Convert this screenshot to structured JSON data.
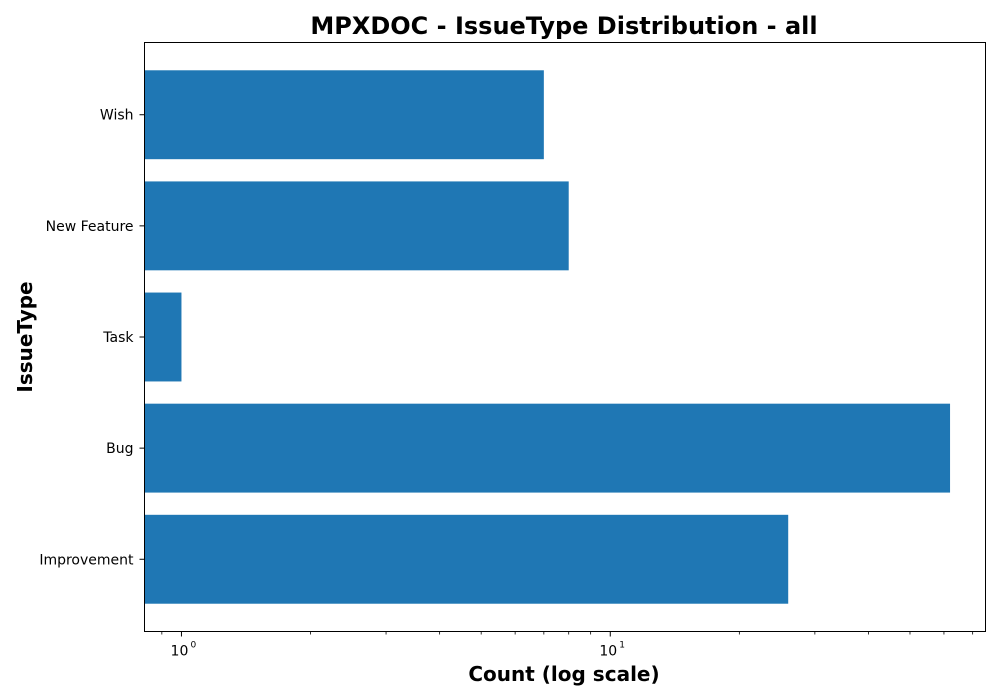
{
  "chart_data": {
    "type": "bar",
    "orientation": "horizontal",
    "title": "MPXDOC - IssueType Distribution - all",
    "xlabel": "Count (log scale)",
    "ylabel": "IssueType",
    "xscale": "log",
    "xlim": [
      0.82,
      75
    ],
    "categories": [
      "Improvement",
      "Bug",
      "Task",
      "New Feature",
      "Wish"
    ],
    "values": [
      26,
      62,
      1,
      8,
      7
    ],
    "x_tick_labels": [
      {
        "base": "10",
        "exponent": "0",
        "value": 1
      },
      {
        "base": "10",
        "exponent": "1",
        "value": 10
      }
    ],
    "bar_color": "#1f77b4",
    "grid": false,
    "legend": "none"
  }
}
